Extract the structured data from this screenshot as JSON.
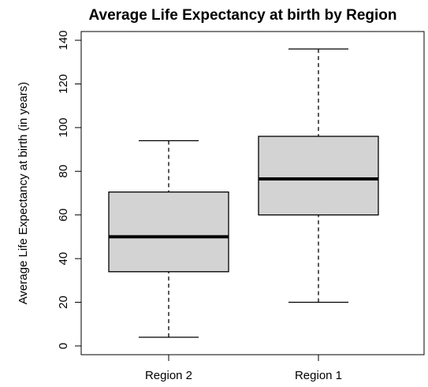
{
  "chart_data": {
    "type": "boxplot",
    "title": "Average Life Expectancy at birth by Region",
    "y_label": "Average Life Expectancy at birth (in years)",
    "categories": [
      "Region 2",
      "Region 1"
    ],
    "boxes": [
      {
        "min": 4,
        "q1": 34,
        "median": 50,
        "q3": 70.5,
        "max": 94
      },
      {
        "min": 20,
        "q1": 60,
        "median": 76.5,
        "q3": 96,
        "max": 136
      }
    ],
    "color": "#d3d3d3",
    "ylim": [
      -4,
      144
    ],
    "yticks": [
      0,
      20,
      40,
      60,
      80,
      100,
      120,
      140
    ]
  }
}
